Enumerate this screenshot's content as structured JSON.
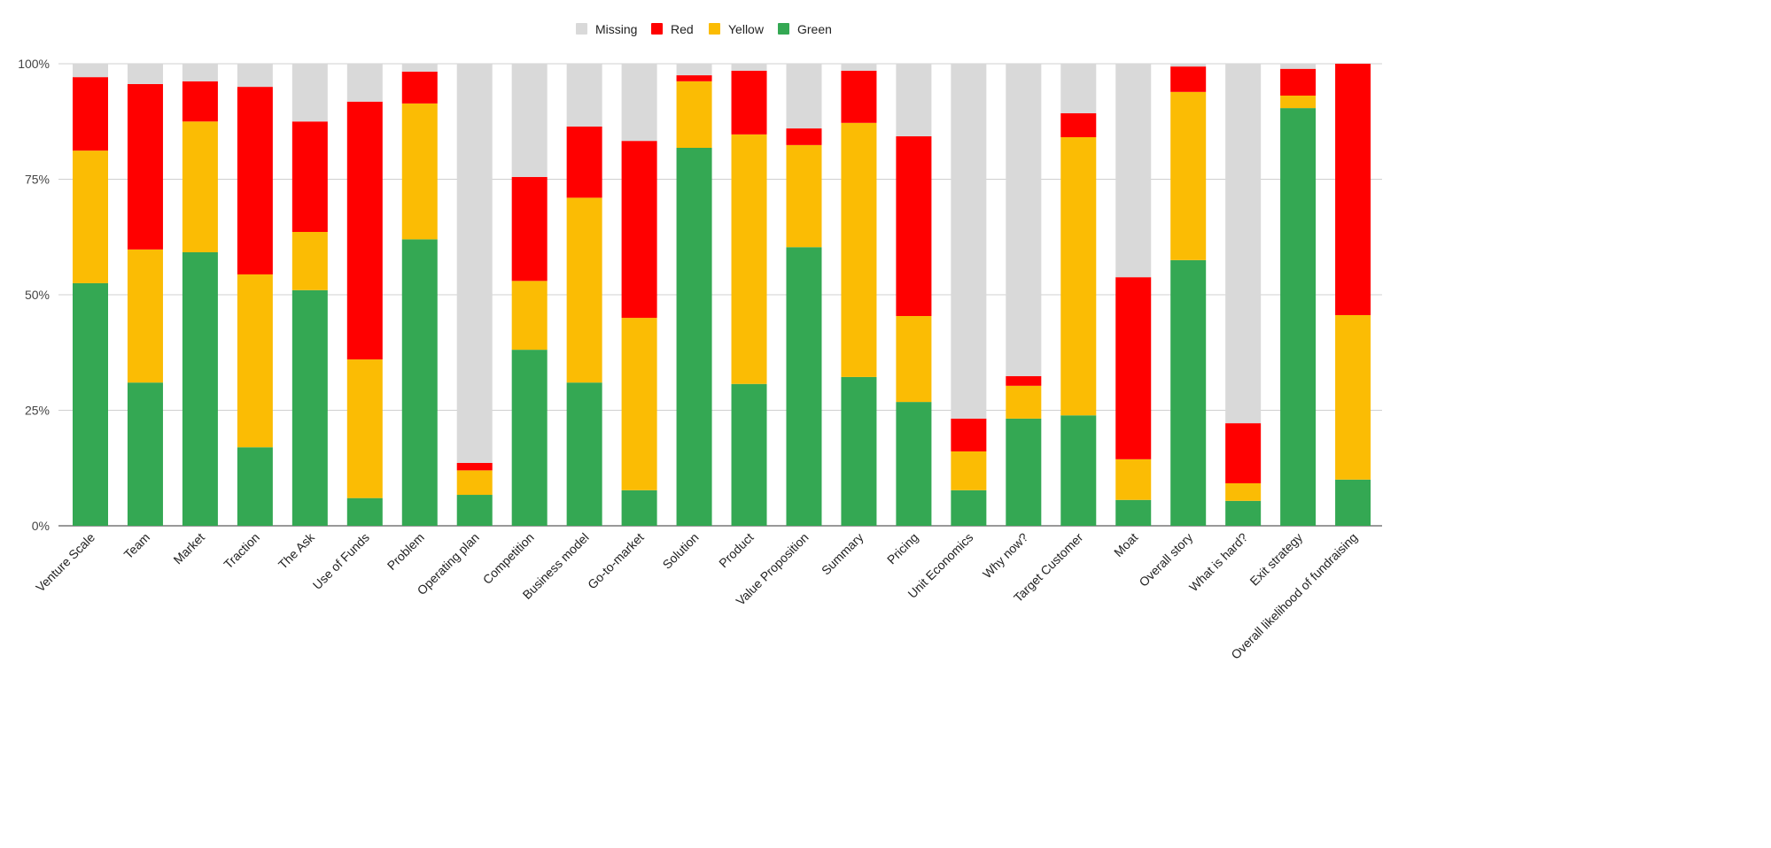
{
  "chart_data": {
    "type": "bar",
    "stacked": true,
    "normalized": true,
    "title": "",
    "xlabel": "",
    "ylabel": "",
    "ylim": [
      0,
      100
    ],
    "yticks": [
      "0%",
      "25%",
      "50%",
      "75%",
      "100%"
    ],
    "grid": true,
    "legend_position": "top",
    "categories": [
      "Venture Scale",
      "Team",
      "Market",
      "Traction",
      "The Ask",
      "Use of Funds",
      "Problem",
      "Operating plan",
      "Competition",
      "Business model",
      "Go-to-market",
      "Solution",
      "Product",
      "Value Proposition",
      "Summary",
      "Pricing",
      "Unit Economics",
      "Why now?",
      "Target Customer",
      "Moat",
      "Overall story",
      "What is hard?",
      "Exit strategy",
      "Overall likelihood of fundraising"
    ],
    "series": [
      {
        "name": "Green",
        "color": "#34a853",
        "values": [
          52.5,
          31,
          59.2,
          17,
          51,
          6,
          62,
          6.7,
          38.1,
          31,
          7.7,
          81.8,
          30.7,
          60.3,
          32.2,
          26.8,
          7.7,
          23.2,
          23.9,
          5.6,
          57.5,
          5.4,
          90.4,
          10
        ]
      },
      {
        "name": "Yellow",
        "color": "#fbbc04",
        "values": [
          28.7,
          28.8,
          28.3,
          37.4,
          12.6,
          30,
          29.4,
          5.3,
          14.9,
          40,
          37.3,
          14.4,
          54,
          22.1,
          55,
          18.6,
          8.4,
          7.1,
          60.2,
          8.8,
          36.4,
          3.8,
          2.7,
          35.6
        ]
      },
      {
        "name": "Red",
        "color": "#ff0000",
        "values": [
          15.9,
          35.8,
          8.7,
          40.6,
          23.9,
          55.8,
          6.9,
          1.6,
          22.5,
          15.4,
          38.3,
          1.3,
          13.8,
          3.6,
          11.3,
          38.9,
          7.1,
          2.1,
          5.2,
          39.4,
          5.5,
          13,
          5.8,
          54.4
        ]
      },
      {
        "name": "Missing",
        "color": "#d9d9d9",
        "values": [
          2.9,
          4.4,
          3.8,
          5,
          12.5,
          8.2,
          1.7,
          86.4,
          24.5,
          13.6,
          16.7,
          2.5,
          1.5,
          14,
          1.5,
          15.7,
          76.8,
          67.6,
          10.7,
          46.2,
          0.6,
          77.8,
          1.1,
          0
        ]
      }
    ],
    "legend_order": [
      "Missing",
      "Red",
      "Yellow",
      "Green"
    ]
  }
}
